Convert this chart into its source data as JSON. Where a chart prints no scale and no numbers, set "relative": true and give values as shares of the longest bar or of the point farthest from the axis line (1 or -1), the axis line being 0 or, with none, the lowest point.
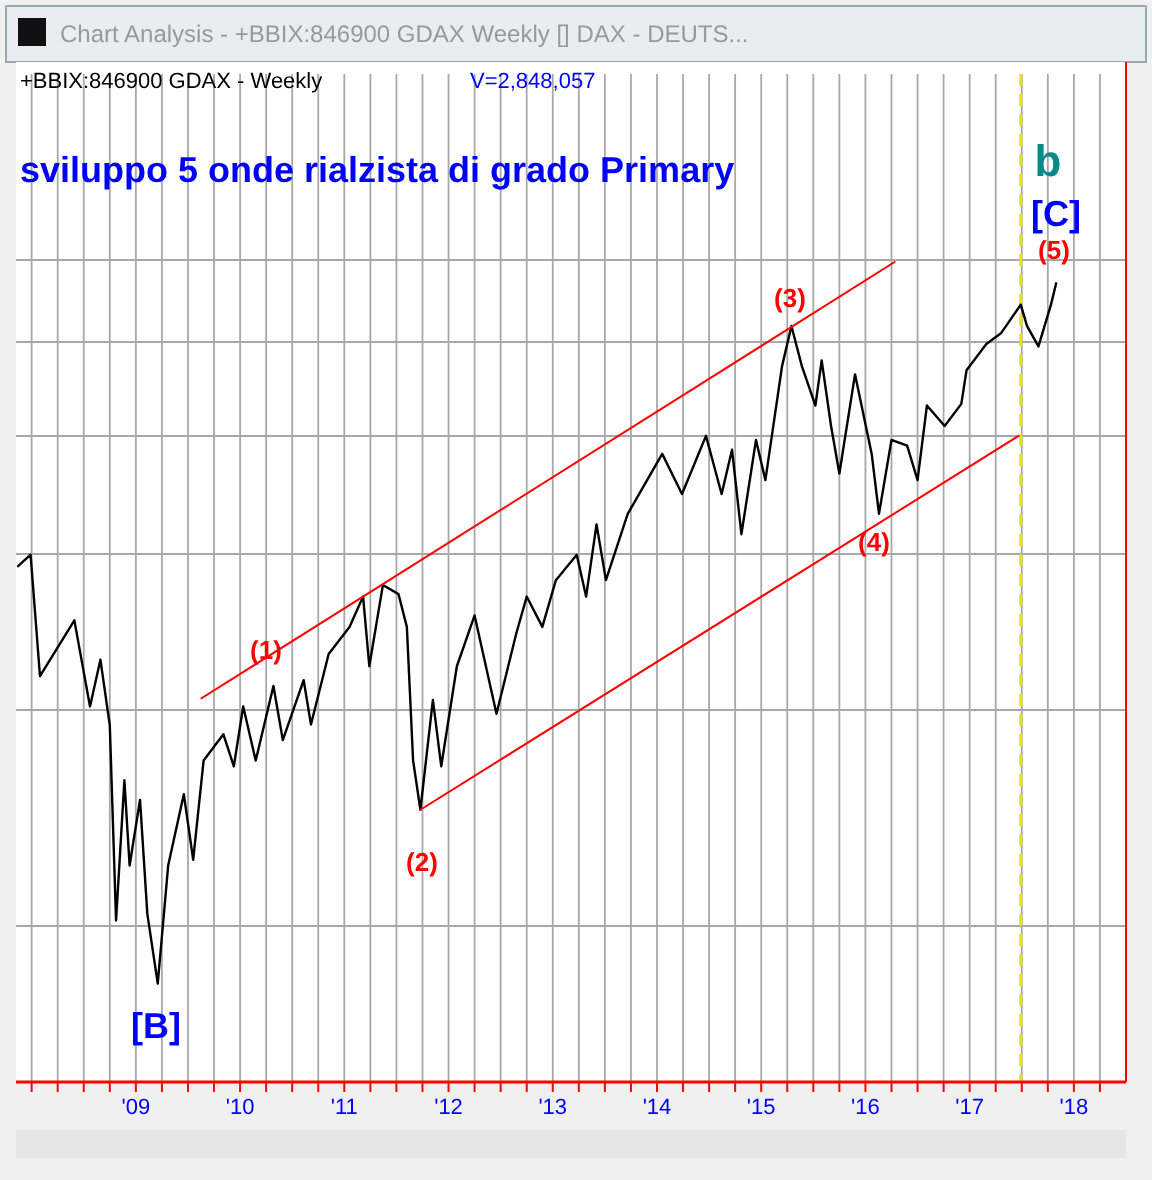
{
  "chart_data": {
    "type": "line",
    "relative": true,
    "title": "sviluppo 5 onde rialzista di grado Primary",
    "subtitle": "+BBIX:846900 GDAX - Weekly",
    "xlim": [
      2007.85,
      2018.5
    ],
    "xticks": [
      {
        "value": 2008,
        "label": null
      },
      {
        "value": 2008.25,
        "label": null
      },
      {
        "value": 2008.5,
        "label": null
      },
      {
        "value": 2008.75,
        "label": null
      },
      {
        "value": 2009,
        "label": "'09"
      },
      {
        "value": 2009.25,
        "label": null
      },
      {
        "value": 2009.5,
        "label": null
      },
      {
        "value": 2009.75,
        "label": null
      },
      {
        "value": 2010,
        "label": "'10"
      },
      {
        "value": 2010.25,
        "label": null
      },
      {
        "value": 2010.5,
        "label": null
      },
      {
        "value": 2010.75,
        "label": null
      },
      {
        "value": 2011,
        "label": "'11"
      },
      {
        "value": 2011.25,
        "label": null
      },
      {
        "value": 2011.5,
        "label": null
      },
      {
        "value": 2011.75,
        "label": null
      },
      {
        "value": 2012,
        "label": "'12"
      },
      {
        "value": 2012.25,
        "label": null
      },
      {
        "value": 2012.5,
        "label": null
      },
      {
        "value": 2012.75,
        "label": null
      },
      {
        "value": 2013,
        "label": "'13"
      },
      {
        "value": 2013.25,
        "label": null
      },
      {
        "value": 2013.5,
        "label": null
      },
      {
        "value": 2013.75,
        "label": null
      },
      {
        "value": 2014,
        "label": "'14"
      },
      {
        "value": 2014.25,
        "label": null
      },
      {
        "value": 2014.5,
        "label": null
      },
      {
        "value": 2014.75,
        "label": null
      },
      {
        "value": 2015,
        "label": "'15"
      },
      {
        "value": 2015.25,
        "label": null
      },
      {
        "value": 2015.5,
        "label": null
      },
      {
        "value": 2015.75,
        "label": null
      },
      {
        "value": 2016,
        "label": "'16"
      },
      {
        "value": 2016.25,
        "label": null
      },
      {
        "value": 2016.5,
        "label": null
      },
      {
        "value": 2016.75,
        "label": null
      },
      {
        "value": 2017,
        "label": "'17"
      },
      {
        "value": 2017.25,
        "label": null
      },
      {
        "value": 2017.5,
        "label": null
      },
      {
        "value": 2017.75,
        "label": null
      },
      {
        "value": 2018,
        "label": "'18"
      },
      {
        "value": 2018.25,
        "label": null
      }
    ],
    "grid": "x",
    "marker": "none",
    "series": [
      {
        "color": "#000000",
        "x": [
          2007.87,
          2007.99,
          2008.08,
          2008.41,
          2008.56,
          2008.66,
          2008.75,
          2008.81,
          2008.89,
          2008.94,
          2009.04,
          2009.11,
          2009.21,
          2009.31,
          2009.46,
          2009.55,
          2009.65,
          2009.84,
          2009.94,
          2010.03,
          2010.15,
          2010.32,
          2010.41,
          2010.61,
          2010.68,
          2010.85,
          2011.05,
          2011.18,
          2011.24,
          2011.37,
          2011.52,
          2011.6,
          2011.66,
          2011.73,
          2011.85,
          2011.93,
          2012.08,
          2012.25,
          2012.46,
          2012.65,
          2012.75,
          2012.9,
          2013.03,
          2013.23,
          2013.32,
          2013.42,
          2013.51,
          2013.72,
          2014.05,
          2014.24,
          2014.47,
          2014.62,
          2014.72,
          2014.81,
          2014.95,
          2015.04,
          2015.2,
          2015.29,
          2015.39,
          2015.52,
          2015.58,
          2015.67,
          2015.75,
          2015.9,
          2016.06,
          2016.13,
          2016.25,
          2016.4,
          2016.5,
          2016.59,
          2016.76,
          2016.92,
          2016.97,
          2017.16,
          2017.3,
          2017.36,
          2017.49,
          2017.55,
          2017.66,
          2017.78,
          2017.83
        ],
        "values": [
          0.629,
          0.643,
          0.495,
          0.563,
          0.458,
          0.515,
          0.435,
          0.197,
          0.368,
          0.264,
          0.344,
          0.205,
          0.12,
          0.264,
          0.351,
          0.271,
          0.392,
          0.424,
          0.385,
          0.458,
          0.392,
          0.483,
          0.417,
          0.49,
          0.436,
          0.522,
          0.555,
          0.592,
          0.507,
          0.606,
          0.595,
          0.555,
          0.392,
          0.332,
          0.466,
          0.385,
          0.507,
          0.569,
          0.449,
          0.547,
          0.592,
          0.555,
          0.612,
          0.643,
          0.592,
          0.68,
          0.612,
          0.693,
          0.766,
          0.717,
          0.788,
          0.717,
          0.771,
          0.668,
          0.783,
          0.734,
          0.873,
          0.922,
          0.873,
          0.825,
          0.88,
          0.8,
          0.742,
          0.863,
          0.766,
          0.693,
          0.783,
          0.776,
          0.734,
          0.825,
          0.8,
          0.827,
          0.868,
          0.9,
          0.913,
          0.924,
          0.948,
          0.922,
          0.897,
          0.948,
          0.974
        ]
      },
      {
        "type": "line",
        "color": "#ff0000",
        "x": [
          2009.63,
          2016.28
        ],
        "values": [
          0.468,
          1
        ]
      },
      {
        "type": "line",
        "color": "#ff0000",
        "x": [
          2011.73,
          2017.47
        ],
        "values": [
          0.332,
          0.788
        ]
      }
    ],
    "ref_lines": [
      {
        "axis": "x",
        "value": 2017.49,
        "color": "#e6e600",
        "line_style": "dashed"
      }
    ],
    "annotations": [
      "Chart Analysis - +BBIX:846900 GDAX Weekly [] DAX - DEUTS...",
      "V=2,848,057",
      "(1)",
      "(2)",
      "(3)",
      "(4)",
      "(5)",
      "[B]",
      "[C]",
      "b"
    ]
  }
}
